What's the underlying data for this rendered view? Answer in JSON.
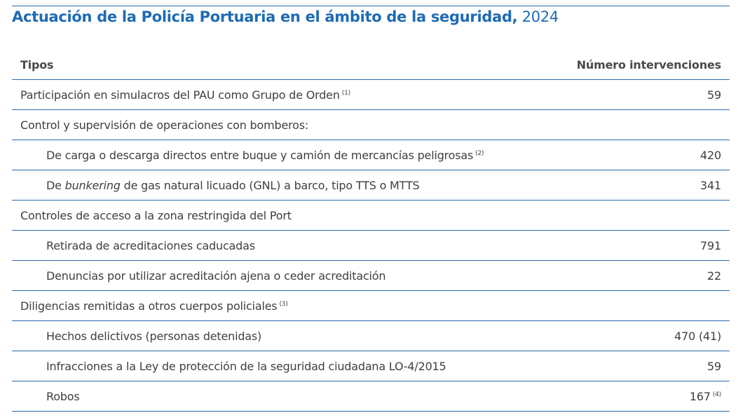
{
  "document": {
    "title_bold": "Actuación de la Policía Portuaria en el ámbito de la seguridad,",
    "title_year": " 2024",
    "accent_color": "#1f6bb3",
    "rule_color": "#2a6aa6"
  },
  "table": {
    "headers": {
      "tipos": "Tipos",
      "numero": "Número intervenciones"
    },
    "rows": [
      {
        "label": "Participación en simulacros del PAU como Grupo de Orden",
        "note": "(1)",
        "value": "59",
        "indent": false
      },
      {
        "label": "Control y supervisión de operaciones con bomberos:",
        "value": "",
        "indent": false
      },
      {
        "label": "De carga o descarga directos entre buque y camión de mercancías peligrosas",
        "note": "(2)",
        "value": "420",
        "indent": true
      },
      {
        "label_pre": "De ",
        "label_italic": "bunkering",
        "label_post": " de gas natural licuado (GNL) a barco, tipo TTS o MTTS",
        "value": "341",
        "indent": true
      },
      {
        "label": "Controles de acceso a la zona restringida del Port",
        "value": "",
        "indent": false
      },
      {
        "label": "Retirada de acreditaciones caducadas",
        "value": "791",
        "indent": true
      },
      {
        "label": "Denuncias por utilizar acreditación ajena o ceder acreditación",
        "value": "22",
        "indent": true
      },
      {
        "label": "Diligencias remitidas a otros cuerpos policiales",
        "note": "(3)",
        "value": "",
        "indent": false
      },
      {
        "label": "Hechos delictivos (personas detenidas)",
        "value": "470 (41)",
        "indent": true
      },
      {
        "label": "Infracciones a la Ley de protección de la seguridad ciudadana LO-4/2015",
        "value": "59",
        "indent": true
      },
      {
        "label": "Robos",
        "value": "167",
        "value_note": "(4)",
        "indent": true
      }
    ]
  }
}
